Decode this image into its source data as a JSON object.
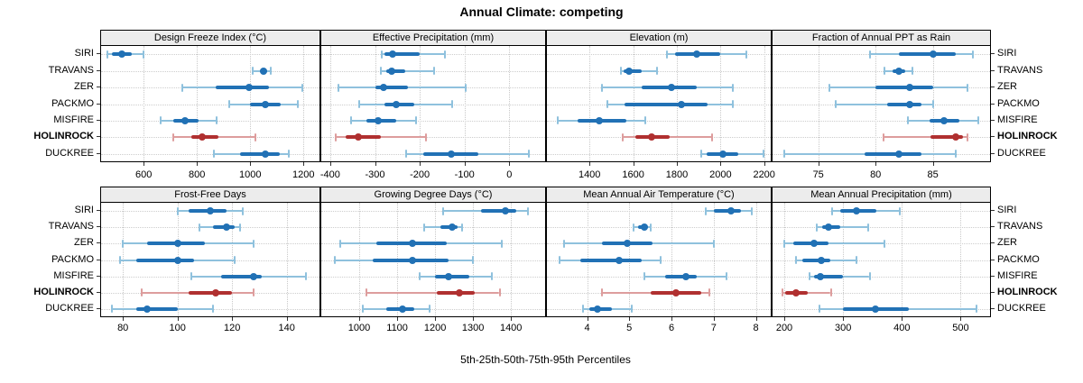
{
  "title": "Annual Climate: competing",
  "footer": "5th-25th-50th-75th-95th Percentiles",
  "sites": [
    "SIRI",
    "TRAVANS",
    "ZER",
    "PACKMO",
    "MISFIRE",
    "HOLINROCK",
    "DUCKREE"
  ],
  "highlight_site": "HOLINROCK",
  "colors": {
    "series_dark": "#2171b5",
    "series_light": "#8fc1dd",
    "highlight_dark": "#b03030",
    "highlight_light": "#dd9d9d",
    "strip_bg": "#ececec",
    "grid": "#c9c9c9",
    "border": "#000000"
  },
  "chart_data": {
    "type": "trellis-dotplot-percentiles",
    "title": "Annual Climate: competing",
    "xlabel": "5th-25th-50th-75th-95th Percentiles",
    "percentile_labels": [
      "5th",
      "25th",
      "50th",
      "75th",
      "95th"
    ],
    "grid": "dotted",
    "layout": "2 rows x 4 columns, free x scales",
    "sites_top_to_bottom": [
      "SIRI",
      "TRAVANS",
      "ZER",
      "PACKMO",
      "MISFIRE",
      "HOLINROCK",
      "DUCKREE"
    ],
    "panels": [
      {
        "title": "Design Freeze Index (°C)",
        "grid_row": 0,
        "grid_col": 0,
        "xlim": [
          440,
          1260
        ],
        "ticks": [
          600,
          800,
          1000,
          1200
        ],
        "values": [
          [
            462,
            480,
            517,
            557,
            600
          ],
          [
            1010,
            1035,
            1050,
            1065,
            1078
          ],
          [
            745,
            870,
            995,
            1070,
            1195
          ],
          [
            920,
            1000,
            1055,
            1115,
            1180
          ],
          [
            665,
            710,
            755,
            805,
            875
          ],
          [
            710,
            778,
            818,
            880,
            1020
          ],
          [
            865,
            960,
            1055,
            1110,
            1145
          ]
        ]
      },
      {
        "title": "Effective Precipitation (mm)",
        "grid_row": 0,
        "grid_col": 1,
        "xlim": [
          -420,
          80
        ],
        "ticks": [
          -400,
          -300,
          -200,
          -100,
          0
        ],
        "values": [
          [
            -285,
            -278,
            -260,
            -200,
            -143
          ],
          [
            -287,
            -275,
            -262,
            -232,
            -168
          ],
          [
            -381,
            -300,
            -280,
            -226,
            -97
          ],
          [
            -335,
            -278,
            -252,
            -212,
            -128
          ],
          [
            -354,
            -320,
            -293,
            -253,
            -208
          ],
          [
            -388,
            -365,
            -338,
            -287,
            -186
          ],
          [
            -230,
            -193,
            -129,
            -70,
            44
          ]
        ]
      },
      {
        "title": "Elevation (m)",
        "grid_row": 0,
        "grid_col": 2,
        "xlim": [
          1205,
          2230
        ],
        "ticks": [
          1400,
          1600,
          1800,
          2000,
          2200
        ],
        "values": [
          [
            1755,
            1790,
            1890,
            2000,
            2120
          ],
          [
            1545,
            1555,
            1580,
            1640,
            1710
          ],
          [
            1455,
            1640,
            1775,
            1890,
            2055
          ],
          [
            1480,
            1560,
            1820,
            1940,
            2055
          ],
          [
            1255,
            1345,
            1445,
            1570,
            1655
          ],
          [
            1550,
            1610,
            1685,
            1765,
            1960
          ],
          [
            1910,
            1935,
            2010,
            2080,
            2195
          ]
        ]
      },
      {
        "title": "Fraction of Annual PPT as Rain",
        "grid_row": 0,
        "grid_col": 3,
        "xlim": [
          71,
          90
        ],
        "ticks": [
          75,
          80,
          85
        ],
        "values": [
          [
            79.5,
            82,
            85,
            87,
            88.5
          ],
          [
            80.8,
            81.5,
            82,
            82.6,
            83.2
          ],
          [
            76,
            80,
            83,
            85,
            88
          ],
          [
            76.5,
            81,
            83,
            84,
            85
          ],
          [
            82.8,
            84.7,
            86,
            87.3,
            89
          ],
          [
            80.7,
            84.8,
            87,
            87.6,
            88
          ],
          [
            72,
            79,
            82,
            84,
            87
          ]
        ]
      },
      {
        "title": "Frost-Free Days",
        "grid_row": 1,
        "grid_col": 0,
        "xlim": [
          72,
          152
        ],
        "ticks": [
          80,
          100,
          120,
          140
        ],
        "values": [
          [
            100,
            104,
            112,
            118,
            124
          ],
          [
            108,
            113,
            118,
            121,
            123
          ],
          [
            80,
            89,
            100,
            110,
            128
          ],
          [
            79,
            85,
            100,
            106,
            121
          ],
          [
            105,
            116,
            128,
            131,
            147
          ],
          [
            87,
            104,
            114,
            120,
            128
          ],
          [
            76,
            85,
            89,
            100,
            113
          ]
        ]
      },
      {
        "title": "Growing Degree Days (°C)",
        "grid_row": 1,
        "grid_col": 1,
        "xlim": [
          900,
          1490
        ],
        "ticks": [
          1000,
          1100,
          1200,
          1300,
          1400
        ],
        "values": [
          [
            1220,
            1320,
            1385,
            1415,
            1445
          ],
          [
            1170,
            1215,
            1245,
            1260,
            1270
          ],
          [
            950,
            1045,
            1140,
            1230,
            1375
          ],
          [
            935,
            1035,
            1140,
            1235,
            1300
          ],
          [
            1160,
            1200,
            1235,
            1290,
            1350
          ],
          [
            1020,
            1205,
            1265,
            1305,
            1370
          ],
          [
            1010,
            1070,
            1115,
            1145,
            1185
          ]
        ]
      },
      {
        "title": "Mean Annual Air Temperature (°C)",
        "grid_row": 1,
        "grid_col": 2,
        "xlim": [
          3.05,
          8.35
        ],
        "ticks": [
          4,
          5,
          6,
          7,
          8
        ],
        "values": [
          [
            6.8,
            7.0,
            7.4,
            7.65,
            7.9
          ],
          [
            5.1,
            5.2,
            5.35,
            5.45,
            5.5
          ],
          [
            3.45,
            4.35,
            4.95,
            5.55,
            7.0
          ],
          [
            3.35,
            3.85,
            4.75,
            5.3,
            5.75
          ],
          [
            5.35,
            5.85,
            6.35,
            6.6,
            7.3
          ],
          [
            4.35,
            5.5,
            6.1,
            6.7,
            6.9
          ],
          [
            3.9,
            4.05,
            4.25,
            4.6,
            5.05
          ]
        ]
      },
      {
        "title": "Mean Annual Precipitation (mm)",
        "grid_row": 1,
        "grid_col": 3,
        "xlim": [
          180,
          550
        ],
        "ticks": [
          200,
          300,
          400,
          500
        ],
        "values": [
          [
            282,
            295,
            322,
            357,
            396
          ],
          [
            255,
            264,
            275,
            295,
            343
          ],
          [
            200,
            215,
            250,
            275,
            370
          ],
          [
            220,
            230,
            263,
            278,
            323
          ],
          [
            243,
            250,
            262,
            300,
            345
          ],
          [
            197,
            202,
            220,
            240,
            279
          ],
          [
            260,
            300,
            355,
            412,
            527
          ]
        ]
      }
    ]
  }
}
